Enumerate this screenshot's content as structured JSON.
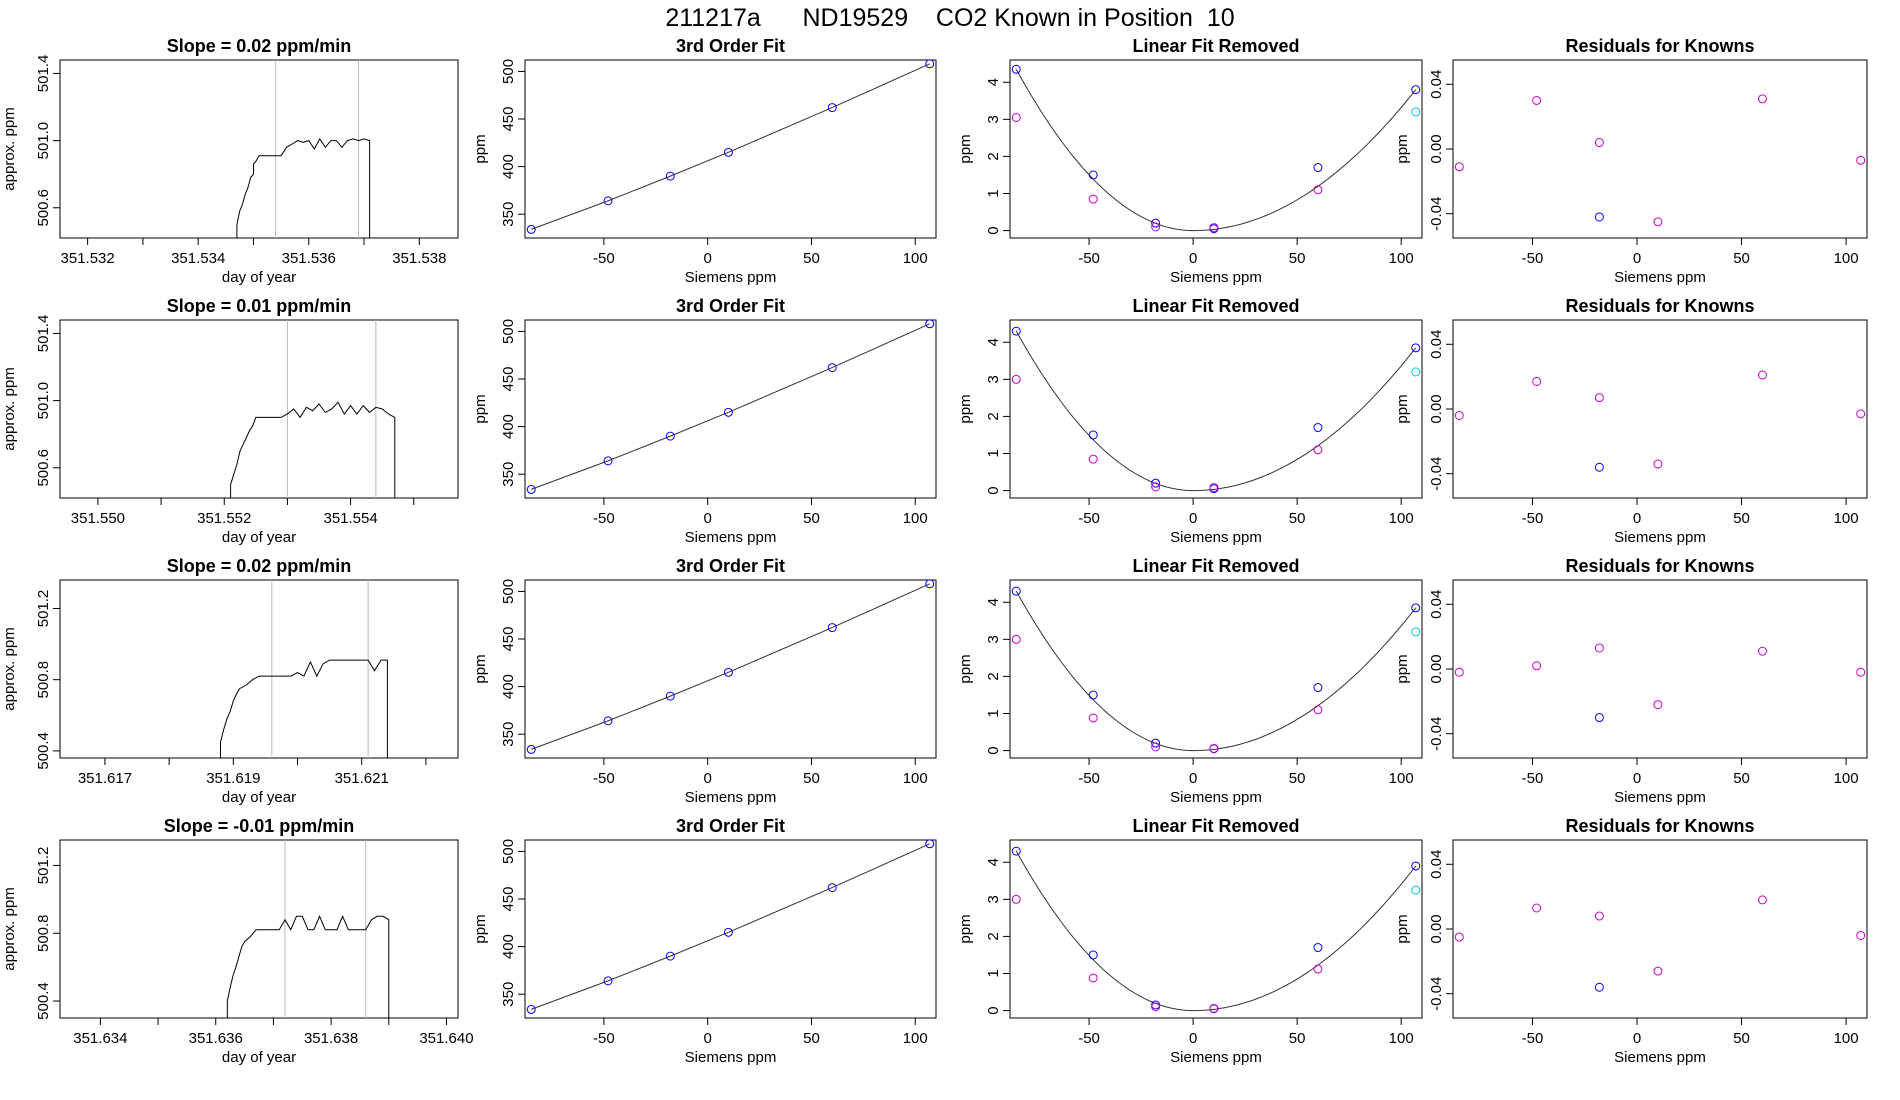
{
  "title": "211217a      ND19529    CO2 Known in Position  10",
  "chart_data": {
    "shared": {
      "fit_plot": {
        "type": "line",
        "title": "3rd Order Fit",
        "xlabel": "Siemens ppm",
        "ylabel": "ppm",
        "xlim": [
          -88,
          110
        ],
        "ylim": [
          325,
          512
        ],
        "xticks": [
          -50,
          0,
          50,
          100
        ],
        "yticks": [
          350,
          400,
          450,
          500
        ],
        "x": [
          -85,
          -48,
          -18,
          10,
          60,
          107
        ],
        "y": [
          334,
          364,
          390,
          415,
          462,
          508
        ]
      },
      "residual_plot": {
        "type": "scatter",
        "title": "Residuals for Knowns",
        "xlabel": "Siemens ppm",
        "ylabel": "ppm",
        "xlim": [
          -88,
          110
        ],
        "ylim": [
          -0.055,
          0.055
        ],
        "xticks": [
          -50,
          0,
          50,
          100
        ],
        "yticks": [
          -0.04,
          0.0,
          0.04
        ],
        "ytick_labels": [
          "-0.04",
          "0.00",
          "0.04"
        ]
      },
      "linear_plot": {
        "type": "scatter",
        "title": "Linear Fit Removed",
        "xlabel": "Siemens ppm",
        "ylabel": "ppm",
        "xlim": [
          -88,
          110
        ],
        "ylim": [
          -0.2,
          4.6
        ],
        "xticks": [
          -50,
          0,
          50,
          100
        ],
        "yticks": [
          0,
          1,
          2,
          3,
          4
        ],
        "x": [
          -85,
          -48,
          -18,
          10,
          60,
          107
        ],
        "colors": {
          "blue": "#0000ff",
          "magenta": "#cc00cc",
          "cyan": "#00cccc",
          "curve": "#333333"
        }
      },
      "time_xlabel": "day of year",
      "time_ylabel": "approx. ppm"
    },
    "rows": [
      {
        "slope_title": "Slope =  0.02  ppm/min",
        "time": {
          "xlim": [
            351.5315,
            351.5387
          ],
          "xticks": [
            351.532,
            351.533,
            351.534,
            351.535,
            351.536,
            351.537,
            351.538
          ],
          "xtick_labels": [
            "351.532",
            "",
            "351.534",
            "",
            "351.536",
            "",
            "351.538"
          ],
          "ylim": [
            500.42,
            501.48
          ],
          "yticks": [
            500.6,
            501.0,
            501.4
          ],
          "ytick_labels": [
            "500.6",
            "501.0",
            "501.4"
          ],
          "vlines": [
            351.5354,
            351.5369
          ],
          "series": [
            [
              351.5347,
              500.42
            ],
            [
              351.5347,
              500.5
            ],
            [
              351.53475,
              500.58
            ],
            [
              351.5348,
              500.62
            ],
            [
              351.53485,
              500.68
            ],
            [
              351.5349,
              500.72
            ],
            [
              351.53495,
              500.78
            ],
            [
              351.535,
              500.8
            ],
            [
              351.535,
              500.86
            ],
            [
              351.53505,
              500.88
            ],
            [
              351.5351,
              500.91
            ],
            [
              351.5352,
              500.91
            ],
            [
              351.5353,
              500.91
            ],
            [
              351.5354,
              500.91
            ],
            [
              351.5355,
              500.91
            ],
            [
              351.5356,
              500.96
            ],
            [
              351.5357,
              500.98
            ],
            [
              351.5358,
              501.0
            ],
            [
              351.5359,
              500.99
            ],
            [
              351.536,
              501.0
            ],
            [
              351.5361,
              500.95
            ],
            [
              351.5362,
              501.01
            ],
            [
              351.5363,
              500.96
            ],
            [
              351.5364,
              501.0
            ],
            [
              351.5365,
              501.0
            ],
            [
              351.5366,
              500.96
            ],
            [
              351.5367,
              501.0
            ],
            [
              351.5368,
              501.01
            ],
            [
              351.5369,
              501.0
            ],
            [
              351.537,
              501.01
            ],
            [
              351.5371,
              501.0
            ],
            [
              351.5371,
              500.42
            ]
          ]
        },
        "linear": {
          "blue": [
            4.35,
            1.5,
            0.2,
            0.05,
            1.7,
            3.8
          ],
          "magenta": [
            3.05,
            0.85,
            0.1,
            0.08,
            1.1
          ],
          "cyan_point": [
            107,
            3.2
          ]
        },
        "residuals": {
          "magenta": [
            [
              -85,
              -0.011
            ],
            [
              -48,
              0.03
            ],
            [
              -18,
              0.004
            ],
            [
              10,
              -0.045
            ],
            [
              60,
              0.031
            ],
            [
              107,
              -0.007
            ]
          ],
          "blue": [
            [
              -18,
              -0.042
            ]
          ]
        }
      },
      {
        "slope_title": "Slope =  0.01  ppm/min",
        "time": {
          "xlim": [
            351.5494,
            351.5557
          ],
          "xticks": [
            351.55,
            351.551,
            351.552,
            351.553,
            351.554,
            351.555
          ],
          "xtick_labels": [
            "351.550",
            "",
            "351.552",
            "",
            "351.554",
            ""
          ],
          "ylim": [
            500.42,
            501.48
          ],
          "yticks": [
            500.6,
            501.0,
            501.4
          ],
          "ytick_labels": [
            "500.6",
            "501.0",
            "501.4"
          ],
          "vlines": [
            351.553,
            351.5544
          ],
          "series": [
            [
              351.5521,
              500.42
            ],
            [
              351.5521,
              500.5
            ],
            [
              351.55215,
              500.56
            ],
            [
              351.5522,
              500.62
            ],
            [
              351.55225,
              500.7
            ],
            [
              351.5523,
              500.74
            ],
            [
              351.55235,
              500.78
            ],
            [
              351.5524,
              500.82
            ],
            [
              351.55245,
              500.85
            ],
            [
              351.5525,
              500.9
            ],
            [
              351.5526,
              500.9
            ],
            [
              351.5527,
              500.9
            ],
            [
              351.5528,
              500.9
            ],
            [
              351.5529,
              500.9
            ],
            [
              351.553,
              500.92
            ],
            [
              351.5531,
              500.95
            ],
            [
              351.5532,
              500.9
            ],
            [
              351.5533,
              500.96
            ],
            [
              351.5534,
              500.94
            ],
            [
              351.5535,
              500.98
            ],
            [
              351.5536,
              500.93
            ],
            [
              351.5537,
              500.95
            ],
            [
              351.5538,
              500.99
            ],
            [
              351.5539,
              500.92
            ],
            [
              351.554,
              500.97
            ],
            [
              351.5541,
              500.92
            ],
            [
              351.5542,
              500.97
            ],
            [
              351.5543,
              500.93
            ],
            [
              351.5544,
              500.96
            ],
            [
              351.5545,
              500.95
            ],
            [
              351.5546,
              500.92
            ],
            [
              351.5547,
              500.9
            ],
            [
              351.5547,
              500.42
            ]
          ]
        },
        "linear": {
          "blue": [
            4.3,
            1.5,
            0.2,
            0.05,
            1.7,
            3.85
          ],
          "magenta": [
            3.0,
            0.85,
            0.1,
            0.08,
            1.1
          ],
          "cyan_point": [
            107,
            3.2
          ]
        },
        "residuals": {
          "magenta": [
            [
              -85,
              -0.004
            ],
            [
              -48,
              0.017
            ],
            [
              -18,
              0.007
            ],
            [
              10,
              -0.034
            ],
            [
              60,
              0.021
            ],
            [
              107,
              -0.003
            ]
          ],
          "blue": [
            [
              -18,
              -0.036
            ]
          ]
        }
      },
      {
        "slope_title": "Slope =  0.02  ppm/min",
        "time": {
          "xlim": [
            351.6163,
            351.6225
          ],
          "xticks": [
            351.617,
            351.618,
            351.619,
            351.62,
            351.621,
            351.622
          ],
          "xtick_labels": [
            "351.617",
            "",
            "351.619",
            "",
            "351.621",
            ""
          ],
          "ylim": [
            500.36,
            501.36
          ],
          "yticks": [
            500.4,
            500.8,
            501.2
          ],
          "ytick_labels": [
            "500.4",
            "500.8",
            "501.2"
          ],
          "vlines": [
            351.6196,
            351.6211
          ],
          "series": [
            [
              351.6188,
              500.36
            ],
            [
              351.6188,
              500.45
            ],
            [
              351.61885,
              500.52
            ],
            [
              351.6189,
              500.58
            ],
            [
              351.61895,
              500.62
            ],
            [
              351.619,
              500.68
            ],
            [
              351.61905,
              500.72
            ],
            [
              351.6191,
              500.75
            ],
            [
              351.6192,
              500.77
            ],
            [
              351.6193,
              500.8
            ],
            [
              351.6194,
              500.82
            ],
            [
              351.6195,
              500.82
            ],
            [
              351.6196,
              500.82
            ],
            [
              351.6197,
              500.82
            ],
            [
              351.6198,
              500.82
            ],
            [
              351.6199,
              500.82
            ],
            [
              351.62,
              500.84
            ],
            [
              351.6201,
              500.82
            ],
            [
              351.6202,
              500.9
            ],
            [
              351.6203,
              500.82
            ],
            [
              351.6204,
              500.89
            ],
            [
              351.6205,
              500.91
            ],
            [
              351.6206,
              500.91
            ],
            [
              351.6207,
              500.91
            ],
            [
              351.6208,
              500.91
            ],
            [
              351.6209,
              500.91
            ],
            [
              351.621,
              500.91
            ],
            [
              351.6211,
              500.91
            ],
            [
              351.6212,
              500.85
            ],
            [
              351.6213,
              500.91
            ],
            [
              351.6214,
              500.91
            ],
            [
              351.6214,
              500.36
            ]
          ]
        },
        "linear": {
          "blue": [
            4.3,
            1.5,
            0.2,
            0.05,
            1.7,
            3.85
          ],
          "magenta": [
            3.0,
            0.88,
            0.1,
            0.06,
            1.1
          ],
          "cyan_point": [
            107,
            3.2
          ]
        },
        "residuals": {
          "magenta": [
            [
              -85,
              -0.002
            ],
            [
              -48,
              0.002
            ],
            [
              -18,
              0.013
            ],
            [
              10,
              -0.022
            ],
            [
              60,
              0.011
            ],
            [
              107,
              -0.002
            ]
          ],
          "blue": [
            [
              -18,
              -0.03
            ]
          ]
        }
      },
      {
        "slope_title": "Slope =  -0.01  ppm/min",
        "time": {
          "xlim": [
            351.6333,
            351.6402
          ],
          "xticks": [
            351.634,
            351.635,
            351.636,
            351.637,
            351.638,
            351.639,
            351.64
          ],
          "xtick_labels": [
            "351.634",
            "",
            "351.636",
            "",
            "351.638",
            "",
            "351.640"
          ],
          "ylim": [
            500.3,
            501.35
          ],
          "yticks": [
            500.4,
            500.8,
            501.2
          ],
          "ytick_labels": [
            "500.4",
            "500.8",
            "501.2"
          ],
          "vlines": [
            351.6372,
            351.6386
          ],
          "series": [
            [
              351.6362,
              500.3
            ],
            [
              351.6362,
              500.4
            ],
            [
              351.63625,
              500.48
            ],
            [
              351.6363,
              500.55
            ],
            [
              351.63635,
              500.6
            ],
            [
              351.6364,
              500.66
            ],
            [
              351.63645,
              500.72
            ],
            [
              351.6365,
              500.75
            ],
            [
              351.6366,
              500.78
            ],
            [
              351.6367,
              500.82
            ],
            [
              351.6368,
              500.82
            ],
            [
              351.6369,
              500.82
            ],
            [
              351.637,
              500.82
            ],
            [
              351.6371,
              500.82
            ],
            [
              351.6372,
              500.88
            ],
            [
              351.6373,
              500.82
            ],
            [
              351.6374,
              500.9
            ],
            [
              351.6375,
              500.9
            ],
            [
              351.6376,
              500.82
            ],
            [
              351.6377,
              500.82
            ],
            [
              351.6378,
              500.9
            ],
            [
              351.6379,
              500.82
            ],
            [
              351.638,
              500.82
            ],
            [
              351.6381,
              500.82
            ],
            [
              351.6382,
              500.9
            ],
            [
              351.6383,
              500.82
            ],
            [
              351.6384,
              500.82
            ],
            [
              351.6385,
              500.82
            ],
            [
              351.6386,
              500.82
            ],
            [
              351.6387,
              500.88
            ],
            [
              351.6388,
              500.9
            ],
            [
              351.6389,
              500.9
            ],
            [
              351.639,
              500.88
            ],
            [
              351.639,
              500.3
            ]
          ]
        },
        "linear": {
          "blue": [
            4.3,
            1.5,
            0.15,
            0.05,
            1.7,
            3.9
          ],
          "magenta": [
            3.0,
            0.88,
            0.1,
            0.06,
            1.12
          ],
          "cyan_point": [
            107,
            3.25
          ]
        },
        "residuals": {
          "magenta": [
            [
              -85,
              -0.005
            ],
            [
              -48,
              0.013
            ],
            [
              -18,
              0.008
            ],
            [
              10,
              -0.026
            ],
            [
              60,
              0.018
            ],
            [
              107,
              -0.004
            ]
          ],
          "blue": [
            [
              -18,
              -0.036
            ]
          ]
        }
      }
    ]
  }
}
